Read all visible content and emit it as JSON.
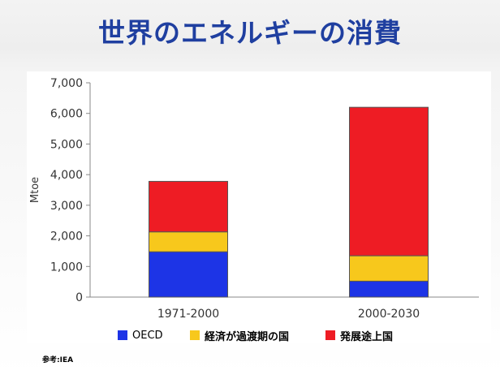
{
  "title": "世界のエネルギーの消費",
  "source": "参考:IEA",
  "colors": {
    "title": "#1f3fa0",
    "oecd": "#1d34e6",
    "transition": "#f7c81c",
    "developing": "#ee1c24"
  },
  "legend": [
    {
      "label": "OECD",
      "color": "#1d34e6",
      "bold": false
    },
    {
      "label": "経済が過渡期の国",
      "color": "#f7c81c",
      "bold": true
    },
    {
      "label": "発展途上国",
      "color": "#ee1c24",
      "bold": true
    }
  ],
  "chart_data": {
    "type": "bar",
    "stacked": true,
    "categories": [
      "1971-2000",
      "2000-2030"
    ],
    "series": [
      {
        "name": "OECD",
        "values": [
          1480,
          520
        ]
      },
      {
        "name": "経済が過渡期の国",
        "values": [
          650,
          830
        ]
      },
      {
        "name": "発展途上国",
        "values": [
          1650,
          4850
        ]
      }
    ],
    "ylabel": "Mtoe",
    "xlabel": "",
    "ylim": [
      0,
      7000
    ],
    "yticks": [
      0,
      1000,
      2000,
      3000,
      4000,
      5000,
      6000,
      7000
    ],
    "ytick_labels": [
      "0",
      "1,000",
      "2,000",
      "3,000",
      "4,000",
      "5,000",
      "6,000",
      "7,000"
    ],
    "grid": false,
    "legend_position": "bottom"
  }
}
